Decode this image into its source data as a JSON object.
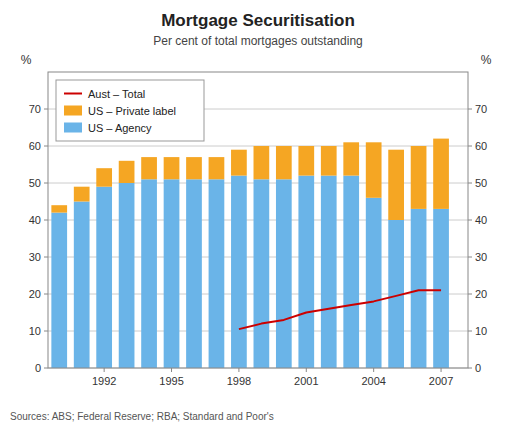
{
  "chart_data": {
    "type": "bar",
    "title": "Mortgage Securitisation",
    "subtitle": "Per cent of total mortgages outstanding",
    "source": "Sources: ABS; Federal Reserve; RBA; Standard and Poor's",
    "ylabel": "%",
    "y2label": "%",
    "stacked": true,
    "grid": true,
    "legend": "upper-left",
    "x": [
      1990,
      1991,
      1992,
      1993,
      1994,
      1995,
      1996,
      1997,
      1998,
      1999,
      2000,
      2001,
      2002,
      2003,
      2004,
      2005,
      2006,
      2007
    ],
    "xlim": [
      1989.5,
      2008.2
    ],
    "xticks": [
      1992,
      1995,
      1998,
      2001,
      2004,
      2007
    ],
    "ylim": [
      0,
      80
    ],
    "yticks": [
      0,
      10,
      20,
      30,
      40,
      50,
      60,
      70
    ],
    "y2lim": [
      0,
      80
    ],
    "y2ticks": [
      0,
      10,
      20,
      30,
      40,
      50,
      60,
      70
    ],
    "series": [
      {
        "name": "US – Agency",
        "type": "bar",
        "color": "#6ab4e8",
        "values": [
          42,
          45,
          49,
          50,
          51,
          51,
          51,
          51,
          52,
          51,
          51,
          52,
          52,
          52,
          46,
          40,
          43,
          43
        ]
      },
      {
        "name": "US – Private label",
        "type": "bar",
        "color": "#f5a623",
        "values": [
          2,
          4,
          5,
          6,
          6,
          6,
          6,
          6,
          7,
          9,
          9,
          8,
          8,
          9,
          15,
          19,
          17,
          19
        ]
      },
      {
        "name": "Aust – Total",
        "type": "line",
        "color": "#cc0000",
        "values": [
          null,
          null,
          null,
          null,
          null,
          null,
          null,
          null,
          10.5,
          12,
          13,
          15,
          16,
          17,
          18,
          19.5,
          21,
          21
        ]
      }
    ]
  }
}
